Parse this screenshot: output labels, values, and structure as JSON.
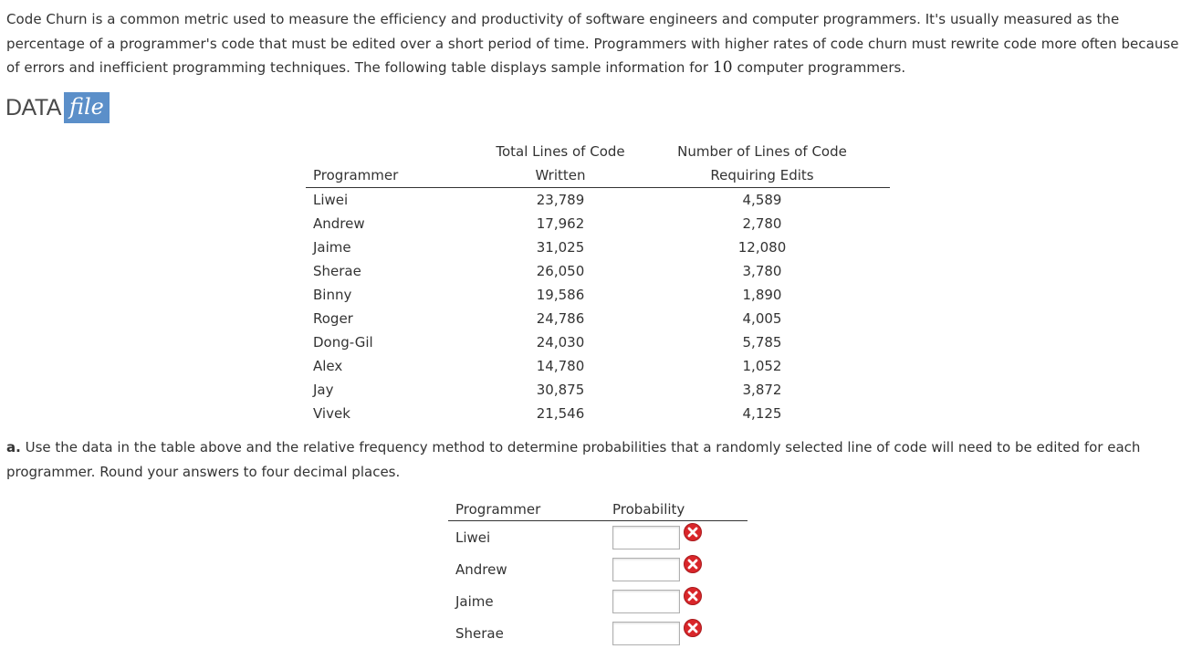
{
  "intro": {
    "text_before": "Code Churn is a common metric used to measure the efficiency and productivity of software engineers and computer programmers. It's usually measured as the percentage of a programmer's code that must be edited over a short period of time. Programmers with higher rates of code churn must rewrite code more often because of errors and inefficient programming techniques. The following table displays sample information for ",
    "count": "10",
    "text_after": " computer programmers."
  },
  "datafile": {
    "data_label": "DATA",
    "file_label": "file"
  },
  "table": {
    "headers": {
      "programmer": "Programmer",
      "total_line1": "Total Lines of Code",
      "total_line2": "Written",
      "edits_line1": "Number of Lines of Code",
      "edits_line2": "Requiring Edits"
    },
    "rows": [
      {
        "name": "Liwei",
        "total": "23,789",
        "edits": "4,589"
      },
      {
        "name": "Andrew",
        "total": "17,962",
        "edits": "2,780"
      },
      {
        "name": "Jaime",
        "total": "31,025",
        "edits": "12,080"
      },
      {
        "name": "Sherae",
        "total": "26,050",
        "edits": "3,780"
      },
      {
        "name": "Binny",
        "total": "19,586",
        "edits": "1,890"
      },
      {
        "name": "Roger",
        "total": "24,786",
        "edits": "4,005"
      },
      {
        "name": "Dong-Gil",
        "total": "24,030",
        "edits": "5,785"
      },
      {
        "name": "Alex",
        "total": "14,780",
        "edits": "1,052"
      },
      {
        "name": "Jay",
        "total": "30,875",
        "edits": "3,872"
      },
      {
        "name": "Vivek",
        "total": "21,546",
        "edits": "4,125"
      }
    ]
  },
  "question": {
    "label": "a.",
    "text": " Use the data in the table above and the relative frequency method to determine probabilities that a randomly selected line of code will need to be edited for each programmer. Round your answers to four decimal places."
  },
  "answer_table": {
    "headers": {
      "programmer": "Programmer",
      "probability": "Probability"
    },
    "rows": [
      {
        "name": "Liwei",
        "value": ""
      },
      {
        "name": "Andrew",
        "value": ""
      },
      {
        "name": "Jaime",
        "value": ""
      },
      {
        "name": "Sherae",
        "value": ""
      }
    ]
  },
  "colors": {
    "wrong_icon": "#d9262a",
    "datafile_box": "#5b8fc9"
  },
  "icons": {
    "status": "wrong-x-icon"
  }
}
